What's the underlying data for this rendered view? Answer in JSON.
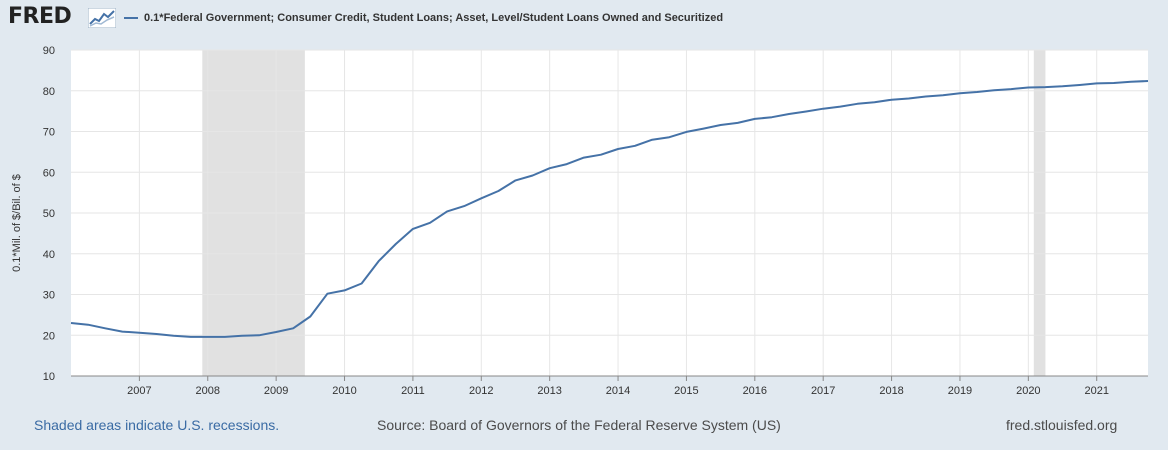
{
  "header": {
    "logo_text": "FRED",
    "legend_label": "0.1*Federal Government; Consumer Credit, Student Loans; Asset, Level/Student Loans Owned and Securitized"
  },
  "footer": {
    "recessions_note": "Shaded areas indicate U.S. recessions.",
    "source": "Source: Board of Governors of the Federal Reserve System (US)",
    "site": "fred.stlouisfed.org"
  },
  "colors": {
    "line": "#4572a7",
    "recession": "#e1e1e1",
    "background": "#e1e9f0",
    "plot": "#ffffff"
  },
  "chart_data": {
    "type": "line",
    "ylabel": "0.1*Mil. of $/Bil. of $",
    "xlabel": "",
    "ylim": [
      10,
      90
    ],
    "yticks": [
      10,
      20,
      30,
      40,
      50,
      60,
      70,
      80,
      90
    ],
    "xlim": [
      2006.0,
      2021.75
    ],
    "xticks": [
      2007,
      2008,
      2009,
      2010,
      2011,
      2012,
      2013,
      2014,
      2015,
      2016,
      2017,
      2018,
      2019,
      2020,
      2021
    ],
    "grid": true,
    "legend_position": "top-left",
    "recessions": [
      [
        2007.92,
        2009.42
      ],
      [
        2020.08,
        2020.25
      ]
    ],
    "series": [
      {
        "name": "0.1*Federal Government; Consumer Credit, Student Loans; Asset, Level/Student Loans Owned and Securitized",
        "x": [
          2006.0,
          2006.25,
          2006.5,
          2006.75,
          2007.0,
          2007.25,
          2007.5,
          2007.75,
          2008.0,
          2008.25,
          2008.5,
          2008.75,
          2009.0,
          2009.25,
          2009.5,
          2009.75,
          2010.0,
          2010.25,
          2010.5,
          2010.75,
          2011.0,
          2011.25,
          2011.5,
          2011.75,
          2012.0,
          2012.25,
          2012.5,
          2012.75,
          2013.0,
          2013.25,
          2013.5,
          2013.75,
          2014.0,
          2014.25,
          2014.5,
          2014.75,
          2015.0,
          2015.25,
          2015.5,
          2015.75,
          2016.0,
          2016.25,
          2016.5,
          2016.75,
          2017.0,
          2017.25,
          2017.5,
          2017.75,
          2018.0,
          2018.25,
          2018.5,
          2018.75,
          2019.0,
          2019.25,
          2019.5,
          2019.75,
          2020.0,
          2020.25,
          2020.5,
          2020.75,
          2021.0,
          2021.25,
          2021.5,
          2021.75
        ],
        "values": [
          23.0,
          22.6,
          21.7,
          20.9,
          20.6,
          20.3,
          19.9,
          19.6,
          19.6,
          19.6,
          19.9,
          20.0,
          20.8,
          21.7,
          24.6,
          30.2,
          31.0,
          32.7,
          38.2,
          42.4,
          46.1,
          47.6,
          50.4,
          51.7,
          53.6,
          55.4,
          58.0,
          59.2,
          61.0,
          62.0,
          63.6,
          64.3,
          65.7,
          66.5,
          68.0,
          68.6,
          69.9,
          70.7,
          71.6,
          72.1,
          73.1,
          73.5,
          74.3,
          74.9,
          75.6,
          76.1,
          76.8,
          77.2,
          77.8,
          78.1,
          78.6,
          78.9,
          79.4,
          79.7,
          80.1,
          80.4,
          80.8,
          80.9,
          81.1,
          81.4,
          81.8,
          81.9,
          82.2,
          82.4
        ]
      }
    ]
  }
}
